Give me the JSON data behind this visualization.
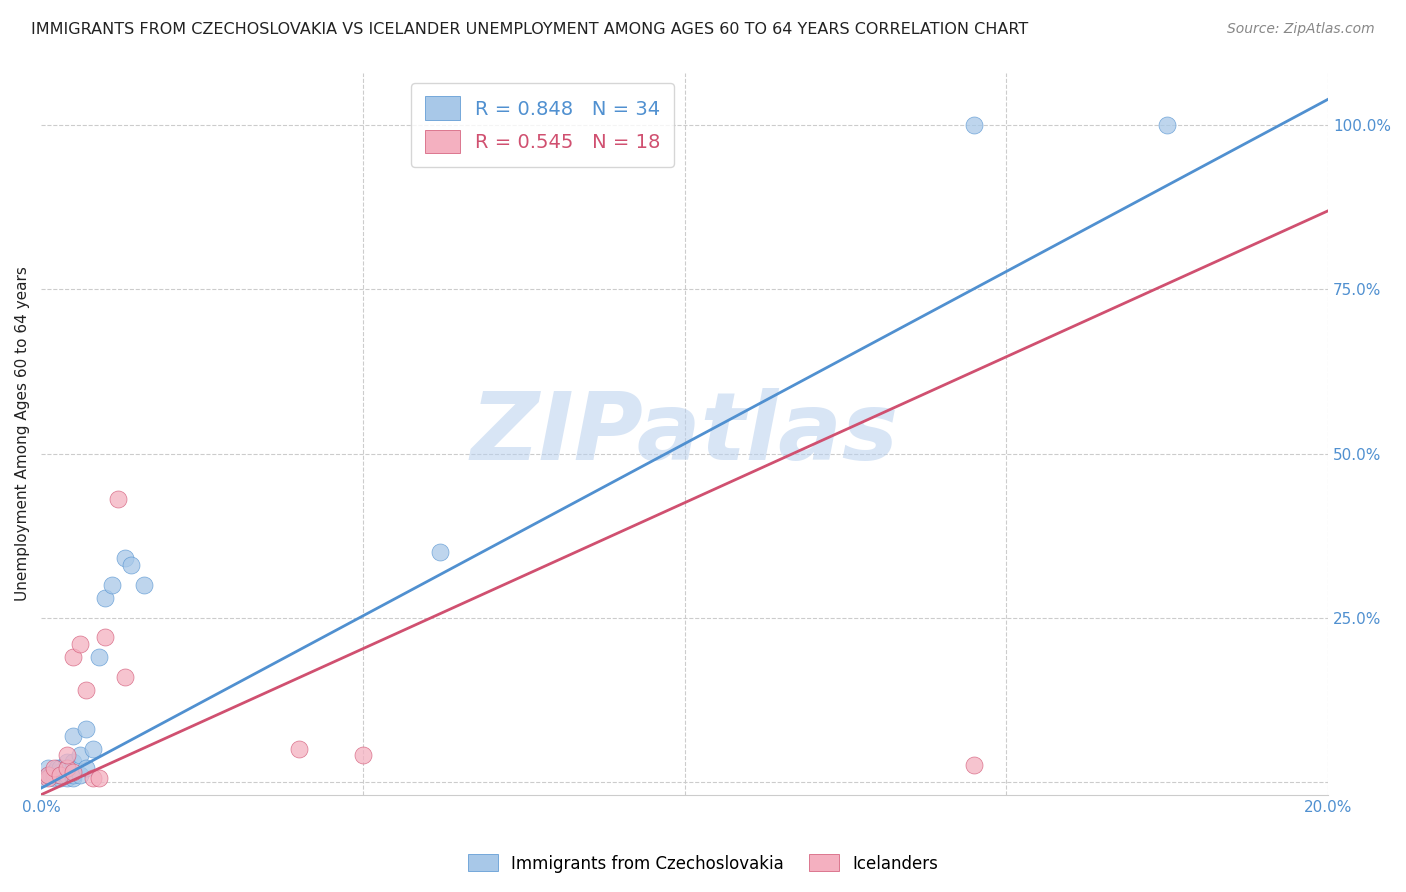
{
  "title": "IMMIGRANTS FROM CZECHOSLOVAKIA VS ICELANDER UNEMPLOYMENT AMONG AGES 60 TO 64 YEARS CORRELATION CHART",
  "source": "Source: ZipAtlas.com",
  "ylabel": "Unemployment Among Ages 60 to 64 years",
  "watermark": "ZIPatlas",
  "xlim": [
    0.0,
    0.2
  ],
  "ylim": [
    -0.02,
    1.08
  ],
  "xticks": [
    0.0,
    0.05,
    0.1,
    0.15,
    0.2
  ],
  "xtick_labels": [
    "0.0%",
    "",
    "",
    "",
    "20.0%"
  ],
  "yticks_right": [
    0.0,
    0.25,
    0.5,
    0.75,
    1.0
  ],
  "ytick_labels_right": [
    "",
    "25.0%",
    "50.0%",
    "75.0%",
    "100.0%"
  ],
  "blue_label": "Immigrants from Czechoslovakia",
  "pink_label": "Icelanders",
  "blue_R": 0.848,
  "blue_N": 34,
  "pink_R": 0.545,
  "pink_N": 18,
  "blue_color": "#a8c8e8",
  "pink_color": "#f4b0c0",
  "blue_line_color": "#5090d0",
  "pink_line_color": "#d05070",
  "blue_line_x0": 0.0,
  "blue_line_y0": -0.01,
  "blue_line_x1": 0.2,
  "blue_line_y1": 1.04,
  "pink_line_x0": 0.0,
  "pink_line_y0": -0.02,
  "pink_line_x1": 0.2,
  "pink_line_y1": 0.87,
  "blue_scatter_x": [
    0.0005,
    0.001,
    0.001,
    0.0015,
    0.002,
    0.002,
    0.002,
    0.0025,
    0.003,
    0.003,
    0.003,
    0.003,
    0.004,
    0.004,
    0.004,
    0.004,
    0.005,
    0.005,
    0.005,
    0.005,
    0.006,
    0.006,
    0.007,
    0.007,
    0.008,
    0.009,
    0.01,
    0.011,
    0.013,
    0.014,
    0.016,
    0.062,
    0.145,
    0.175
  ],
  "blue_scatter_y": [
    0.005,
    0.01,
    0.02,
    0.01,
    0.005,
    0.01,
    0.015,
    0.02,
    0.005,
    0.01,
    0.015,
    0.02,
    0.005,
    0.01,
    0.02,
    0.03,
    0.005,
    0.01,
    0.03,
    0.07,
    0.01,
    0.04,
    0.02,
    0.08,
    0.05,
    0.19,
    0.28,
    0.3,
    0.34,
    0.33,
    0.3,
    0.35,
    1.0,
    1.0
  ],
  "pink_scatter_x": [
    0.001,
    0.001,
    0.002,
    0.003,
    0.004,
    0.004,
    0.005,
    0.005,
    0.006,
    0.007,
    0.008,
    0.009,
    0.01,
    0.012,
    0.013,
    0.04,
    0.05,
    0.145
  ],
  "pink_scatter_y": [
    0.005,
    0.01,
    0.02,
    0.01,
    0.02,
    0.04,
    0.015,
    0.19,
    0.21,
    0.14,
    0.005,
    0.005,
    0.22,
    0.43,
    0.16,
    0.05,
    0.04,
    0.025
  ],
  "background_color": "#ffffff",
  "grid_color": "#cccccc",
  "title_color": "#222222",
  "right_axis_label_color": "#5090d0"
}
